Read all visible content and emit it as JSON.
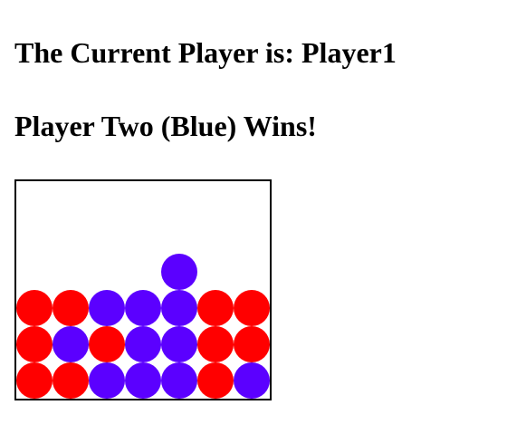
{
  "status": {
    "current_player_text": "The Current Player is: Player1",
    "winner_text": "Player Two (Blue) Wins!"
  },
  "board": {
    "columns": 7,
    "rows": 6,
    "colors": {
      "R": "#ff0000",
      "B": "#5b00ff"
    },
    "cells": [
      [
        ".",
        ".",
        ".",
        ".",
        ".",
        ".",
        "."
      ],
      [
        ".",
        ".",
        ".",
        ".",
        ".",
        ".",
        "."
      ],
      [
        ".",
        ".",
        ".",
        ".",
        "B",
        ".",
        "."
      ],
      [
        "R",
        "R",
        "B",
        "B",
        "B",
        "R",
        "R"
      ],
      [
        "R",
        "B",
        "R",
        "B",
        "B",
        "R",
        "R"
      ],
      [
        "R",
        "R",
        "B",
        "B",
        "B",
        "R",
        "B"
      ]
    ]
  }
}
